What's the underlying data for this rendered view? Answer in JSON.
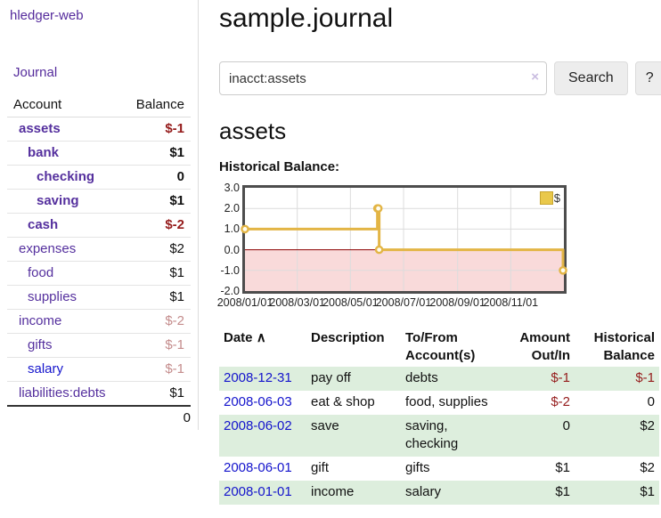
{
  "app": {
    "brand": "hledger-web",
    "nav_journal": "Journal"
  },
  "sidebar": {
    "header": {
      "account": "Account",
      "balance": "Balance"
    },
    "accounts": [
      {
        "name": "assets",
        "depth": 1,
        "balance": "$-1",
        "bold": true,
        "neg": "strong"
      },
      {
        "name": "bank",
        "depth": 2,
        "balance": "$1",
        "bold": true,
        "neg": ""
      },
      {
        "name": "checking",
        "depth": 3,
        "balance": "0",
        "bold": true,
        "neg": ""
      },
      {
        "name": "saving",
        "depth": 3,
        "balance": "$1",
        "bold": true,
        "neg": ""
      },
      {
        "name": "cash",
        "depth": 2,
        "balance": "$-2",
        "bold": true,
        "neg": "strong"
      },
      {
        "name": "expenses",
        "depth": 1,
        "balance": "$2",
        "bold": false,
        "neg": ""
      },
      {
        "name": "food",
        "depth": 2,
        "balance": "$1",
        "bold": false,
        "neg": ""
      },
      {
        "name": "supplies",
        "depth": 2,
        "balance": "$1",
        "bold": false,
        "neg": ""
      },
      {
        "name": "income",
        "depth": 1,
        "balance": "$-2",
        "bold": false,
        "neg": "faded"
      },
      {
        "name": "gifts",
        "depth": 2,
        "balance": "$-1",
        "bold": false,
        "neg": "faded"
      },
      {
        "name": "salary",
        "depth": 2,
        "balance": "$-1",
        "bold": false,
        "neg": "faded",
        "link": "blue"
      },
      {
        "name": "liabilities:debts",
        "depth": 1,
        "balance": "$1",
        "bold": false,
        "neg": ""
      }
    ],
    "total": "0"
  },
  "header": {
    "title": "sample.journal"
  },
  "search": {
    "value": "inacct:assets",
    "clear_icon": "×",
    "button_label": "Search",
    "help_label": "?"
  },
  "account_page": {
    "title": "assets",
    "chart_label": "Historical Balance:"
  },
  "chart_data": {
    "type": "line",
    "step": true,
    "title": "Historical Balance:",
    "legend": "$",
    "legend_position": "top-right",
    "series": [
      {
        "name": "$",
        "x": [
          "2008-01-01",
          "2008-06-01",
          "2008-06-02",
          "2008-06-03",
          "2008-12-31"
        ],
        "y": [
          1,
          2,
          2,
          0,
          -1
        ]
      }
    ],
    "ylim": [
      -2,
      3
    ],
    "yticks": [
      "3.0",
      "2.0",
      "1.0",
      "0.0",
      "-1.0",
      "-2.0"
    ],
    "xticks": [
      "2008/01/01",
      "2008/03/01",
      "2008/05/01",
      "2008/07/01",
      "2008/09/01",
      "2008/11/01"
    ],
    "x_range_days": [
      "2008-01-01",
      "2009-01-01"
    ],
    "grid": true,
    "colors": {
      "line": "#e3b545",
      "marker_fill": "#fffdf0",
      "negative_region": "#f9dada",
      "zero_line": "#8b0000",
      "gridline": "#dcdcdc",
      "plot_border": "#4d4d4d"
    }
  },
  "register": {
    "sort_icon": "∧",
    "columns": {
      "date": "Date",
      "description": "Description",
      "accounts": "To/From Account(s)",
      "amount": "Amount Out/In",
      "balance": "Historical Balance"
    },
    "rows": [
      {
        "date": "2008-12-31",
        "description": "pay off",
        "accounts": "debts",
        "amount": "$-1",
        "balance": "$-1",
        "amount_neg": true,
        "balance_neg": true
      },
      {
        "date": "2008-06-03",
        "description": "eat & shop",
        "accounts": "food, supplies",
        "amount": "$-2",
        "balance": "0",
        "amount_neg": true,
        "balance_neg": false
      },
      {
        "date": "2008-06-02",
        "description": "save",
        "accounts": "saving, checking",
        "amount": "0",
        "balance": "$2",
        "amount_neg": false,
        "balance_neg": false
      },
      {
        "date": "2008-06-01",
        "description": "gift",
        "accounts": "gifts",
        "amount": "$1",
        "balance": "$2",
        "amount_neg": false,
        "balance_neg": false
      },
      {
        "date": "2008-01-01",
        "description": "income",
        "accounts": "salary",
        "amount": "$1",
        "balance": "$1",
        "amount_neg": false,
        "balance_neg": false
      }
    ]
  }
}
